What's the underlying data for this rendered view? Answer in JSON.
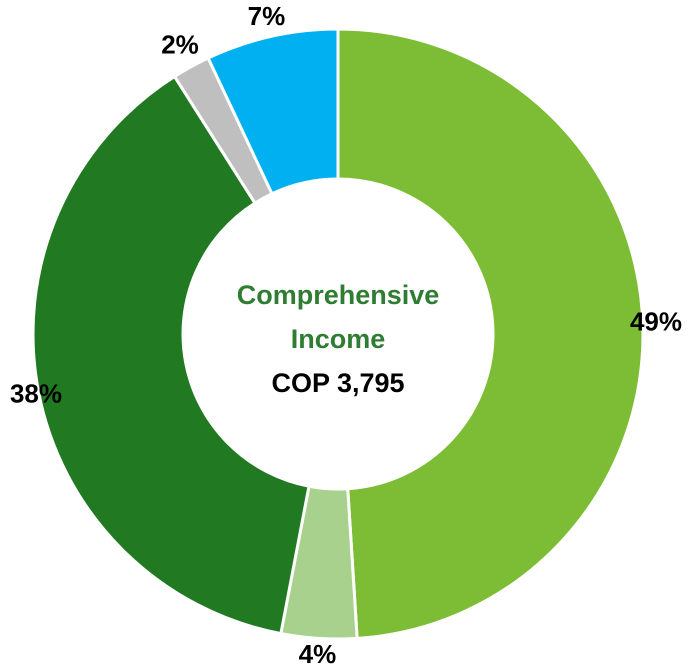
{
  "chart_data": {
    "type": "donut",
    "center_title_lines": [
      "Comprehensive",
      "Income"
    ],
    "center_value": "COP 3,795",
    "values": [
      49,
      4,
      38,
      2,
      7
    ],
    "value_labels": [
      "49%",
      "4%",
      "38%",
      "2%",
      "7%"
    ],
    "colors": [
      "#7dbd35",
      "#a9d18e",
      "#217a22",
      "#bfbfbf",
      "#00b0f0"
    ],
    "title_color": "#2e7d32"
  }
}
